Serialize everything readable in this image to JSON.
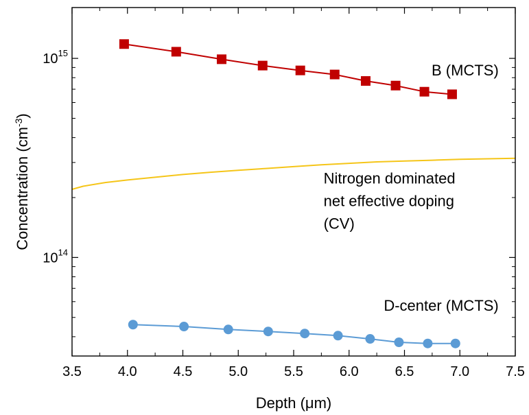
{
  "chart_data": {
    "type": "line",
    "xlabel": "Depth (μm)",
    "ylabel": {
      "base": "Concentration (cm",
      "sup": "-3",
      "close": ")"
    },
    "xlim": [
      3.5,
      7.5
    ],
    "ylim": [
      32000000000000,
      1800000000000000
    ],
    "yscale": "log",
    "xticks": [
      {
        "value": 3.5,
        "label": "3.5"
      },
      {
        "value": 4.0,
        "label": "4.0"
      },
      {
        "value": 4.5,
        "label": "4.5"
      },
      {
        "value": 5.0,
        "label": "5.0"
      },
      {
        "value": 5.5,
        "label": "5.5"
      },
      {
        "value": 6.0,
        "label": "6.0"
      },
      {
        "value": 6.5,
        "label": "6.5"
      },
      {
        "value": 7.0,
        "label": "7.0"
      },
      {
        "value": 7.5,
        "label": "7.5"
      }
    ],
    "yticks": [
      {
        "value": 100000000000000,
        "base": "10",
        "exp": "14"
      },
      {
        "value": 1000000000000000,
        "base": "10",
        "exp": "15"
      }
    ],
    "grid": false,
    "series": [
      {
        "name": "B (MCTS)",
        "color": "#c00000",
        "marker": "square",
        "x": [
          3.97,
          4.44,
          4.85,
          5.22,
          5.56,
          5.87,
          6.15,
          6.42,
          6.68,
          6.93
        ],
        "y": [
          1180000000000000.0,
          1080000000000000.0,
          990000000000000.0,
          920000000000000.0,
          870000000000000.0,
          830000000000000.0,
          770000000000000.0,
          730000000000000.0,
          680000000000000.0,
          660000000000000.0
        ]
      },
      {
        "name": "Nitrogen dominated net effective doping (CV)",
        "color": "#f5c518",
        "marker": "none",
        "x": [
          3.5,
          3.6,
          3.8,
          4.0,
          4.25,
          4.5,
          4.75,
          5.0,
          5.25,
          5.5,
          5.75,
          6.0,
          6.25,
          6.5,
          6.75,
          7.0,
          7.25,
          7.5
        ],
        "y": [
          220000000000000.0,
          228000000000000.0,
          238000000000000.0,
          245000000000000.0,
          253000000000000.0,
          261000000000000.0,
          268000000000000.0,
          274000000000000.0,
          280000000000000.0,
          286000000000000.0,
          292000000000000.0,
          297000000000000.0,
          302000000000000.0,
          305000000000000.0,
          308000000000000.0,
          311000000000000.0,
          313000000000000.0,
          315000000000000.0
        ]
      },
      {
        "name": "D-center (MCTS)",
        "color": "#5b9bd5",
        "marker": "circle",
        "x": [
          4.05,
          4.51,
          4.91,
          5.27,
          5.6,
          5.9,
          6.19,
          6.45,
          6.71,
          6.96
        ],
        "y": [
          46000000000000.0,
          45000000000000.0,
          43500000000000.0,
          42500000000000.0,
          41500000000000.0,
          40500000000000.0,
          39000000000000.0,
          37500000000000.0,
          37000000000000.0,
          37000000000000.0
        ]
      }
    ],
    "annotations": [
      {
        "id": "b",
        "lines": [
          "B (MCTS)"
        ],
        "x": 7.35,
        "y": 820000000000000,
        "anchor": "end"
      },
      {
        "id": "n",
        "lines": [
          "Nitrogen dominated",
          "net effective doping",
          "(CV)"
        ],
        "x": 5.77,
        "y": 235000000000000,
        "anchor": "start"
      },
      {
        "id": "d",
        "lines": [
          "D-center (MCTS)"
        ],
        "x": 7.35,
        "y": 54000000000000,
        "anchor": "end"
      }
    ]
  }
}
